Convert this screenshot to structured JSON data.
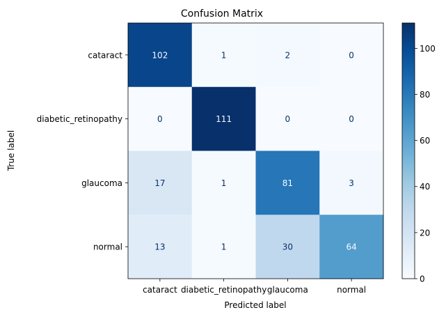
{
  "chart_data": {
    "type": "heatmap",
    "title": "Confusion Matrix",
    "xlabel": "Predicted label",
    "ylabel": "True label",
    "x_categories": [
      "cataract",
      "diabetic_retinopathy",
      "glaucoma",
      "normal"
    ],
    "y_categories": [
      "cataract",
      "diabetic_retinopathy",
      "glaucoma",
      "normal"
    ],
    "values": [
      [
        102,
        1,
        2,
        0
      ],
      [
        0,
        111,
        0,
        0
      ],
      [
        17,
        1,
        81,
        3
      ],
      [
        13,
        1,
        30,
        64
      ]
    ],
    "colormap": "Blues",
    "colorbar": {
      "range": [
        0,
        111
      ],
      "ticks": [
        0,
        20,
        40,
        60,
        80,
        100
      ]
    },
    "colors": {
      "low": "#f7fbff",
      "high": "#08306b",
      "text_dark": "#08306b",
      "text_light": "#f7fbff"
    }
  }
}
